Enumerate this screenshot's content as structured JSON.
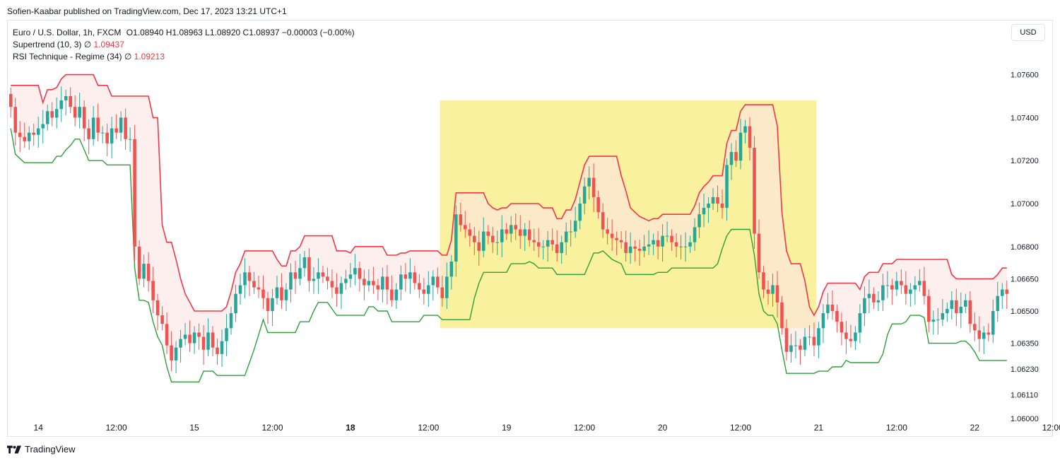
{
  "header": {
    "publisher": "Sofien-Kaabar published on TradingView.com, Dec 17, 2023 13:21 UTC+1"
  },
  "legend": {
    "symbol": "Euro / U.S. Dollar, 1h, FXCM",
    "ohlc": "O1.08940  H1.08963  L1.08920  C1.08937  −0.00003 (−0.00%)",
    "supertrend_label": "Supertrend (10, 3)  ∅",
    "supertrend_value": "1.09437",
    "rsi_label": "RSI Technique - Regime (34)  ∅",
    "rsi_value": "1.09213"
  },
  "currency": "USD",
  "footer": {
    "brand": "TradingView"
  },
  "colors": {
    "up": "#26a69a",
    "down": "#ef5350",
    "supertrend_down": "#f23645",
    "supertrend_up": "#2e9e3a",
    "highlight": "#f8ef8c",
    "bear_fill": "#fde5e5",
    "bull_fill": "#e3f3e3"
  },
  "chart_data": {
    "type": "candlestick",
    "symbol": "EUR/USD",
    "timeframe": "1h",
    "ylim": [
      1.06,
      1.0775
    ],
    "y_ticks": [
      "1.07600",
      "1.07400",
      "1.07200",
      "1.07000",
      "1.06800",
      "1.06650",
      "1.06500",
      "1.06350",
      "1.06230",
      "1.06110",
      "1.06000"
    ],
    "x_ticks": [
      {
        "label": "14",
        "bold": false,
        "bar": 6
      },
      {
        "label": "12:00",
        "bold": false,
        "bar": 23
      },
      {
        "label": "15",
        "bold": false,
        "bar": 40
      },
      {
        "label": "12:00",
        "bold": false,
        "bar": 57
      },
      {
        "label": "18",
        "bold": true,
        "bar": 74
      },
      {
        "label": "12:00",
        "bold": false,
        "bar": 91
      },
      {
        "label": "19",
        "bold": false,
        "bar": 108
      },
      {
        "label": "12:00",
        "bold": false,
        "bar": 125
      },
      {
        "label": "20",
        "bold": false,
        "bar": 142
      },
      {
        "label": "12:00",
        "bold": false,
        "bar": 159
      },
      {
        "label": "21",
        "bold": false,
        "bar": 176
      },
      {
        "label": "12:00",
        "bold": false,
        "bar": 193
      },
      {
        "label": "22",
        "bold": false,
        "bar": 210
      },
      {
        "label": "12:00",
        "bold": false,
        "bar": 227
      }
    ],
    "highlight_zone": {
      "bar_start": 94,
      "bar_end": 176,
      "y_top": 1.0748,
      "y_bottom": 1.0642
    },
    "closes": [
      1.0745,
      1.0733,
      1.0731,
      1.0729,
      1.0733,
      1.0732,
      1.0735,
      1.0737,
      1.0743,
      1.074,
      1.0744,
      1.0748,
      1.075,
      1.0745,
      1.074,
      1.0745,
      1.0735,
      1.073,
      1.074,
      1.0733,
      1.0733,
      1.0728,
      1.0735,
      1.0733,
      1.074,
      1.073,
      1.073,
      1.068,
      1.0665,
      1.0672,
      1.0664,
      1.0655,
      1.0648,
      1.0644,
      1.0634,
      1.0627,
      1.0633,
      1.0637,
      1.0639,
      1.0635,
      1.064,
      1.0638,
      1.0632,
      1.064,
      1.0633,
      1.063,
      1.0636,
      1.0642,
      1.0649,
      1.0658,
      1.0662,
      1.0668,
      1.0664,
      1.0661,
      1.066,
      1.0656,
      1.065,
      1.0656,
      1.0661,
      1.0655,
      1.066,
      1.0668,
      1.0665,
      1.067,
      1.0675,
      1.0664,
      1.0665,
      1.0668,
      1.0666,
      1.0664,
      1.0661,
      1.0658,
      1.0663,
      1.0665,
      1.0667,
      1.067,
      1.0665,
      1.0662,
      1.0664,
      1.0662,
      1.066,
      1.0666,
      1.066,
      1.0655,
      1.066,
      1.0667,
      1.0665,
      1.0668,
      1.0663,
      1.066,
      1.0658,
      1.0662,
      1.0666,
      1.0661,
      1.0656,
      1.0666,
      1.0673,
      1.0695,
      1.069,
      1.0688,
      1.0685,
      1.0682,
      1.0678,
      1.0687,
      1.0685,
      1.0682,
      1.0682,
      1.0688,
      1.0686,
      1.069,
      1.0688,
      1.0685,
      1.0688,
      1.0683,
      1.0682,
      1.068,
      1.068,
      1.0683,
      1.0681,
      1.0677,
      1.0682,
      1.0687,
      1.0687,
      1.0692,
      1.07,
      1.0708,
      1.0712,
      1.0703,
      1.0696,
      1.0688,
      1.0686,
      1.0684,
      1.0683,
      1.0682,
      1.0677,
      1.068,
      1.0679,
      1.0678,
      1.068,
      1.0681,
      1.0683,
      1.068,
      1.0685,
      1.0685,
      1.0682,
      1.068,
      1.068,
      1.068,
      1.0682,
      1.0689,
      1.0695,
      1.0698,
      1.07,
      1.0703,
      1.07,
      1.0698,
      1.0718,
      1.0724,
      1.072,
      1.0733,
      1.0736,
      1.0726,
      1.0686,
      1.0668,
      1.066,
      1.0658,
      1.0662,
      1.0654,
      1.0642,
      1.0631,
      1.0634,
      1.0634,
      1.0632,
      1.0638,
      1.0638,
      1.0634,
      1.0642,
      1.0649,
      1.0653,
      1.065,
      1.0645,
      1.064,
      1.0637,
      1.0636,
      1.064,
      1.0649,
      1.0656,
      1.0658,
      1.0654,
      1.0655,
      1.0662,
      1.0662,
      1.066,
      1.0664,
      1.0662,
      1.0658,
      1.066,
      1.0662,
      1.0664,
      1.0657,
      1.0645,
      1.0646,
      1.0646,
      1.0649,
      1.0651,
      1.0655,
      1.0649,
      1.0652,
      1.0655,
      1.0644,
      1.0641,
      1.0637,
      1.064,
      1.0639,
      1.065,
      1.0657,
      1.066,
      1.0658
    ]
  }
}
